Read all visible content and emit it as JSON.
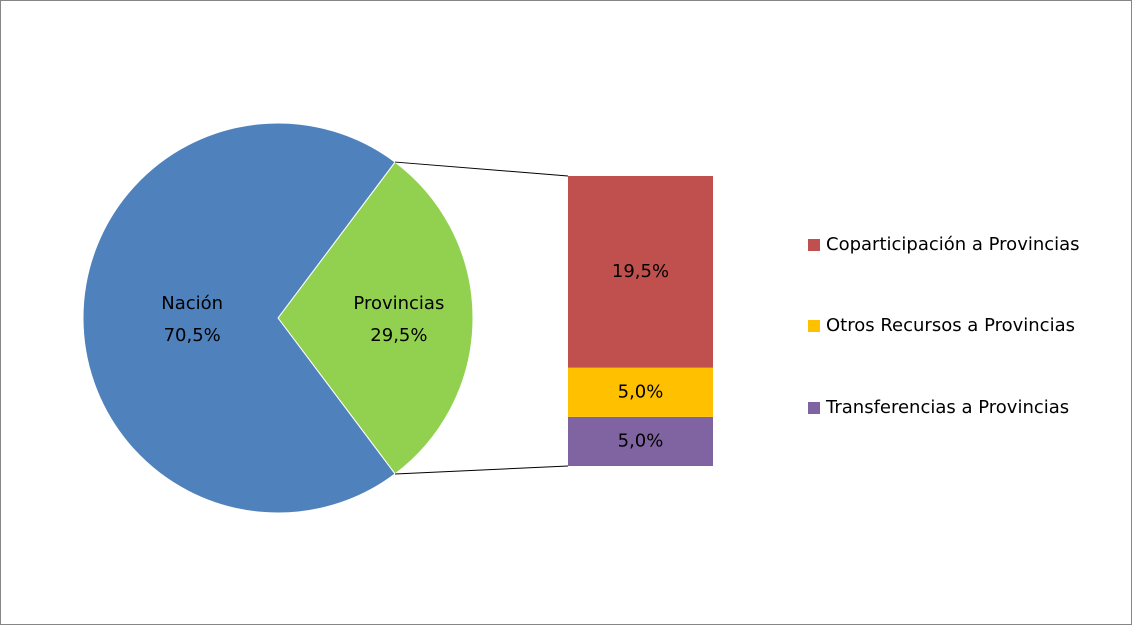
{
  "chart_data": {
    "type": "pie",
    "categories": [
      "Nación",
      "Provincias"
    ],
    "values": [
      70.5,
      29.5
    ],
    "value_labels": [
      "70,5%",
      "29,5%"
    ],
    "colors": [
      "#4f81bd",
      "#92d050"
    ],
    "breakdown": {
      "type": "bar",
      "series": [
        {
          "name": "Coparticipación a Provincias",
          "color": "#c0504d",
          "values": [
            19.5
          ],
          "value_labels": [
            "19,5%"
          ]
        },
        {
          "name": "Otros Recursos a Provincias",
          "color": "#ffc000",
          "values": [
            5.0
          ],
          "value_labels": [
            "5,0%"
          ]
        },
        {
          "name": "Transferencias a Provincias",
          "color": "#8064a2",
          "values": [
            5.0
          ],
          "value_labels": [
            "5,0%"
          ]
        }
      ]
    },
    "legend": "right"
  }
}
